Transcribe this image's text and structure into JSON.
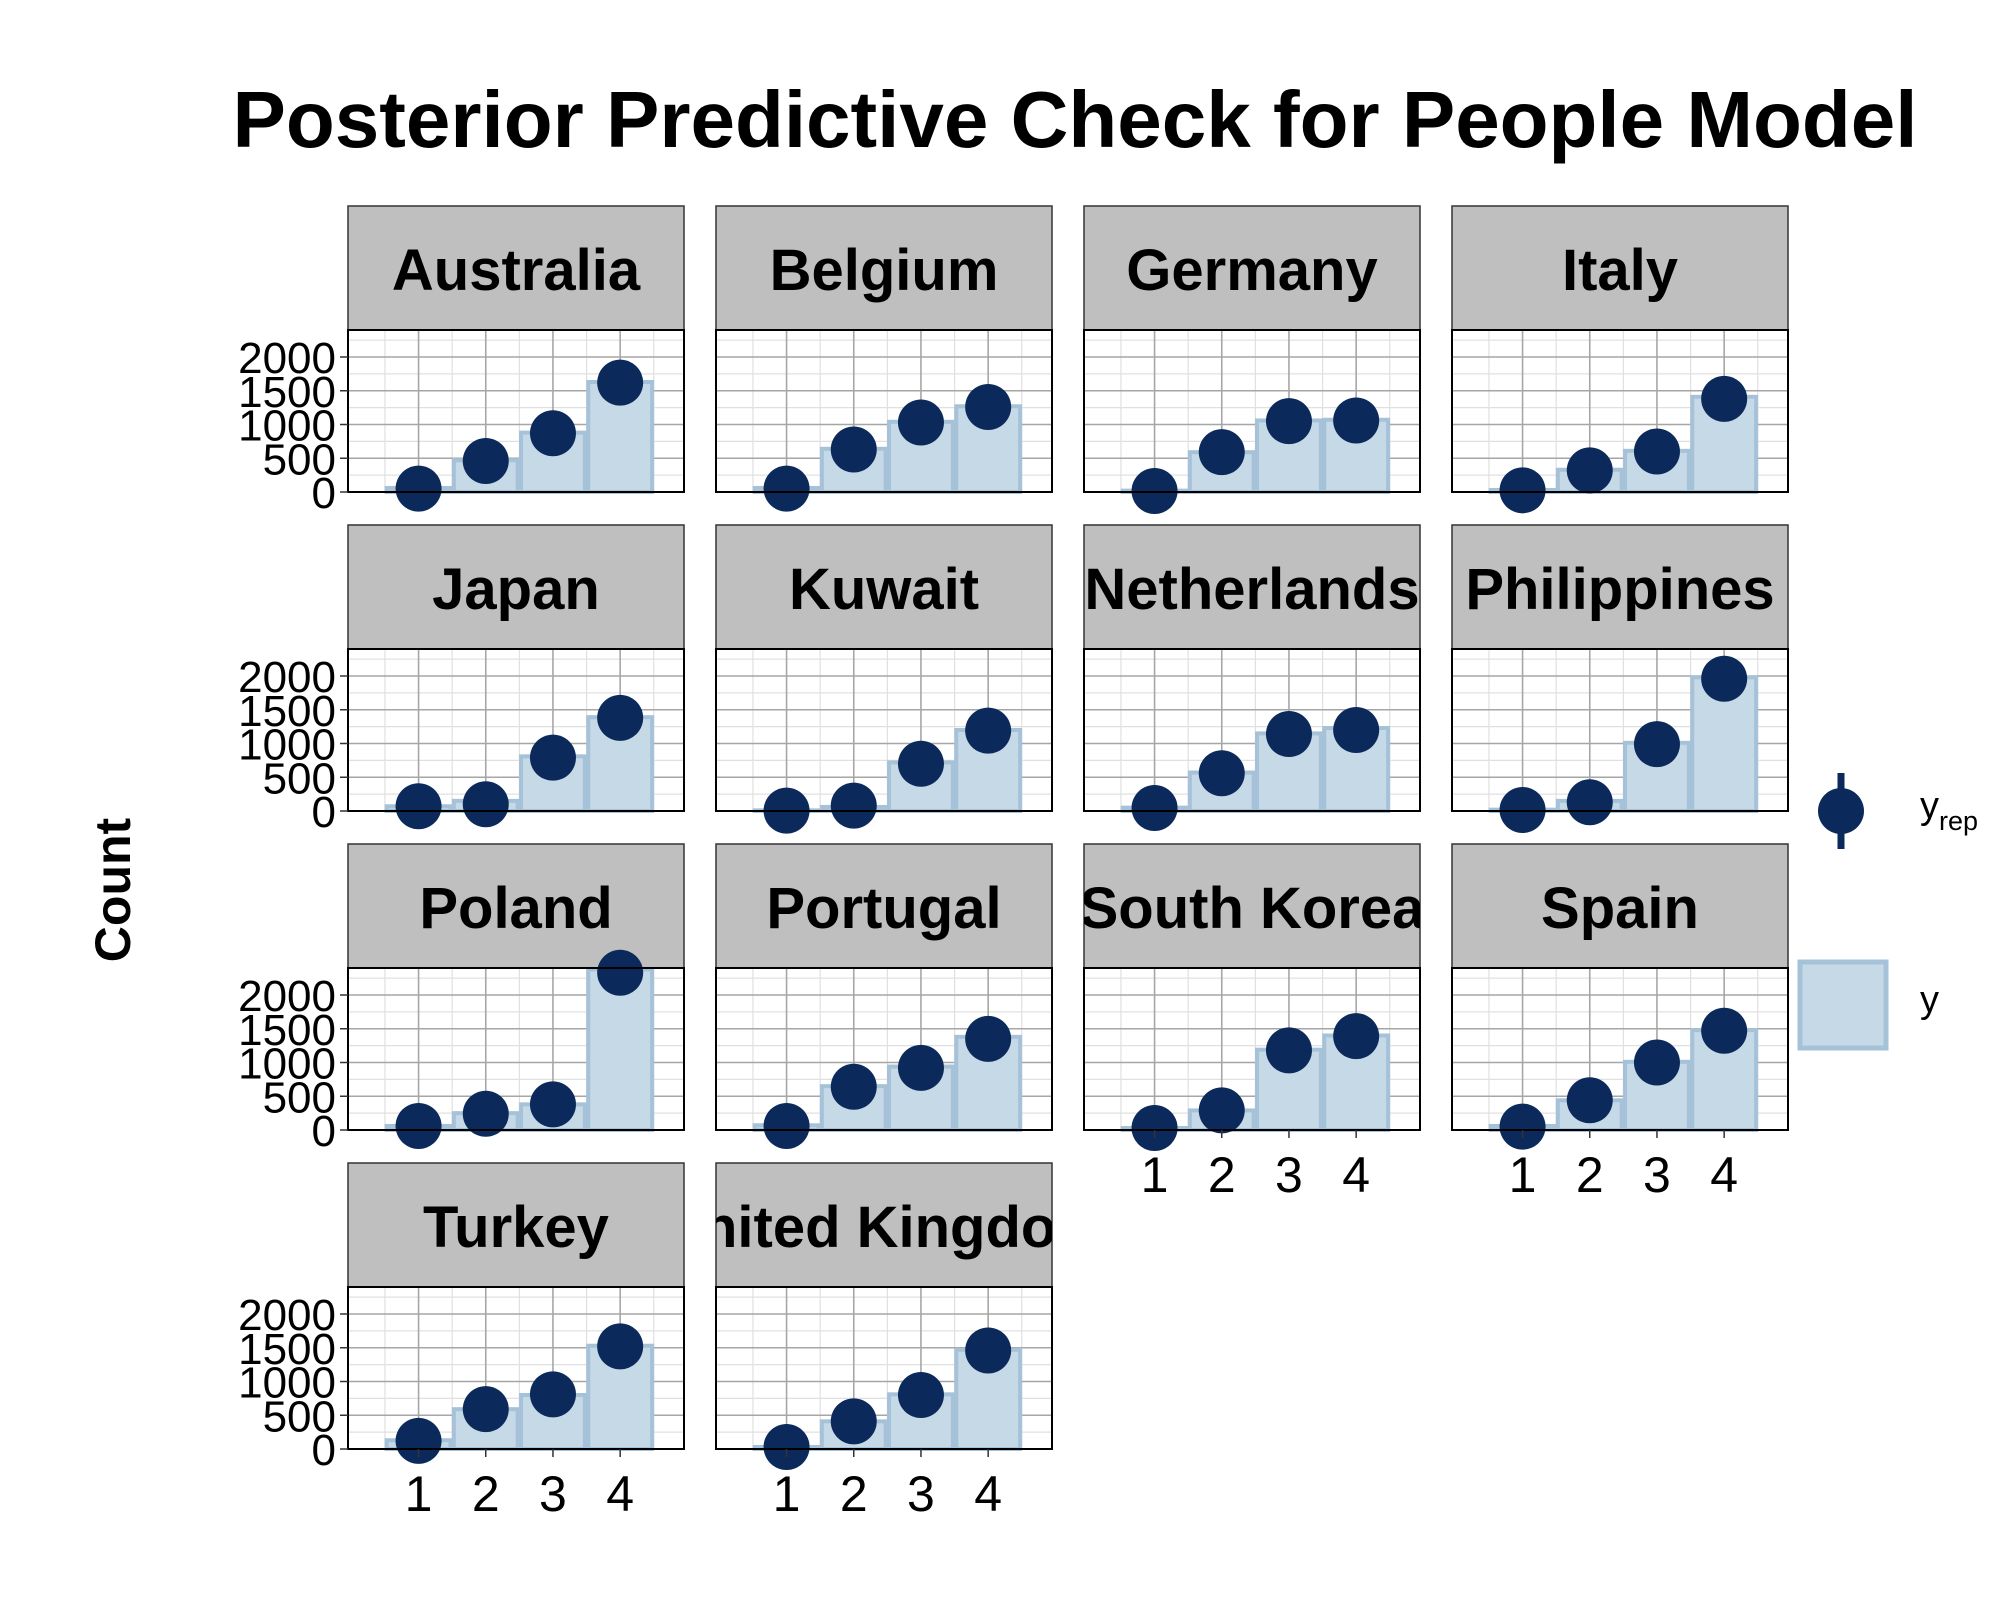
{
  "chart_data": {
    "type": "bar",
    "title": "Posterior Predictive Check for People Model",
    "ylabel": "Count",
    "xlabel": "",
    "categories": [
      "1",
      "2",
      "3",
      "4"
    ],
    "ylim": [
      0,
      2400
    ],
    "y_ticks": [
      0,
      500,
      1000,
      1500,
      2000
    ],
    "y_tick_labels": [
      "0",
      "500",
      "1000",
      "1500",
      "2000"
    ],
    "grid": true,
    "legend_position": "right",
    "legend": {
      "yrep_label": "y",
      "yrep_subscript": "rep",
      "y_label": "y"
    },
    "colors": {
      "y_fill": "#c6d9e7",
      "y_stroke": "#a6c2d8",
      "yrep_point": "#0b2a5b",
      "strip_fill": "#bfbfbf",
      "grid_major": "#a6a6a6",
      "grid_minor": "#e0e0e0"
    },
    "panels": [
      {
        "name": "Australia",
        "y": [
          60,
          470,
          880,
          1630
        ],
        "yrep": [
          50,
          460,
          870,
          1620
        ]
      },
      {
        "name": "Belgium",
        "y": [
          60,
          640,
          1040,
          1270
        ],
        "yrep": [
          50,
          630,
          1030,
          1260
        ]
      },
      {
        "name": "Germany",
        "y": [
          20,
          590,
          1060,
          1070
        ],
        "yrep": [
          15,
          590,
          1050,
          1060
        ]
      },
      {
        "name": "Italy",
        "y": [
          30,
          330,
          610,
          1410
        ],
        "yrep": [
          25,
          320,
          600,
          1380
        ]
      },
      {
        "name": "Japan",
        "y": [
          70,
          150,
          810,
          1390
        ],
        "yrep": [
          70,
          100,
          790,
          1380
        ]
      },
      {
        "name": "Kuwait",
        "y": [
          10,
          60,
          720,
          1200
        ],
        "yrep": [
          5,
          80,
          700,
          1190
        ]
      },
      {
        "name": "Netherlands",
        "y": [
          50,
          570,
          1150,
          1230
        ],
        "yrep": [
          45,
          560,
          1140,
          1200
        ]
      },
      {
        "name": "Philippines",
        "y": [
          20,
          150,
          1010,
          1980
        ],
        "yrep": [
          15,
          130,
          990,
          1960
        ]
      },
      {
        "name": "Poland",
        "y": [
          60,
          250,
          380,
          2380
        ],
        "yrep": [
          60,
          240,
          380,
          2330
        ]
      },
      {
        "name": "Portugal",
        "y": [
          70,
          650,
          940,
          1380
        ],
        "yrep": [
          60,
          640,
          920,
          1350
        ]
      },
      {
        "name": "South Korea",
        "y": [
          30,
          290,
          1190,
          1400
        ],
        "yrep": [
          30,
          290,
          1180,
          1390
        ]
      },
      {
        "name": "Spain",
        "y": [
          60,
          440,
          1010,
          1480
        ],
        "yrep": [
          50,
          440,
          1000,
          1470
        ]
      },
      {
        "name": "Turkey",
        "y": [
          130,
          590,
          800,
          1530
        ],
        "yrep": [
          120,
          590,
          810,
          1520
        ]
      },
      {
        "name": "United Kingdom",
        "y": [
          30,
          410,
          810,
          1470
        ],
        "yrep": [
          30,
          410,
          800,
          1460
        ]
      }
    ]
  }
}
